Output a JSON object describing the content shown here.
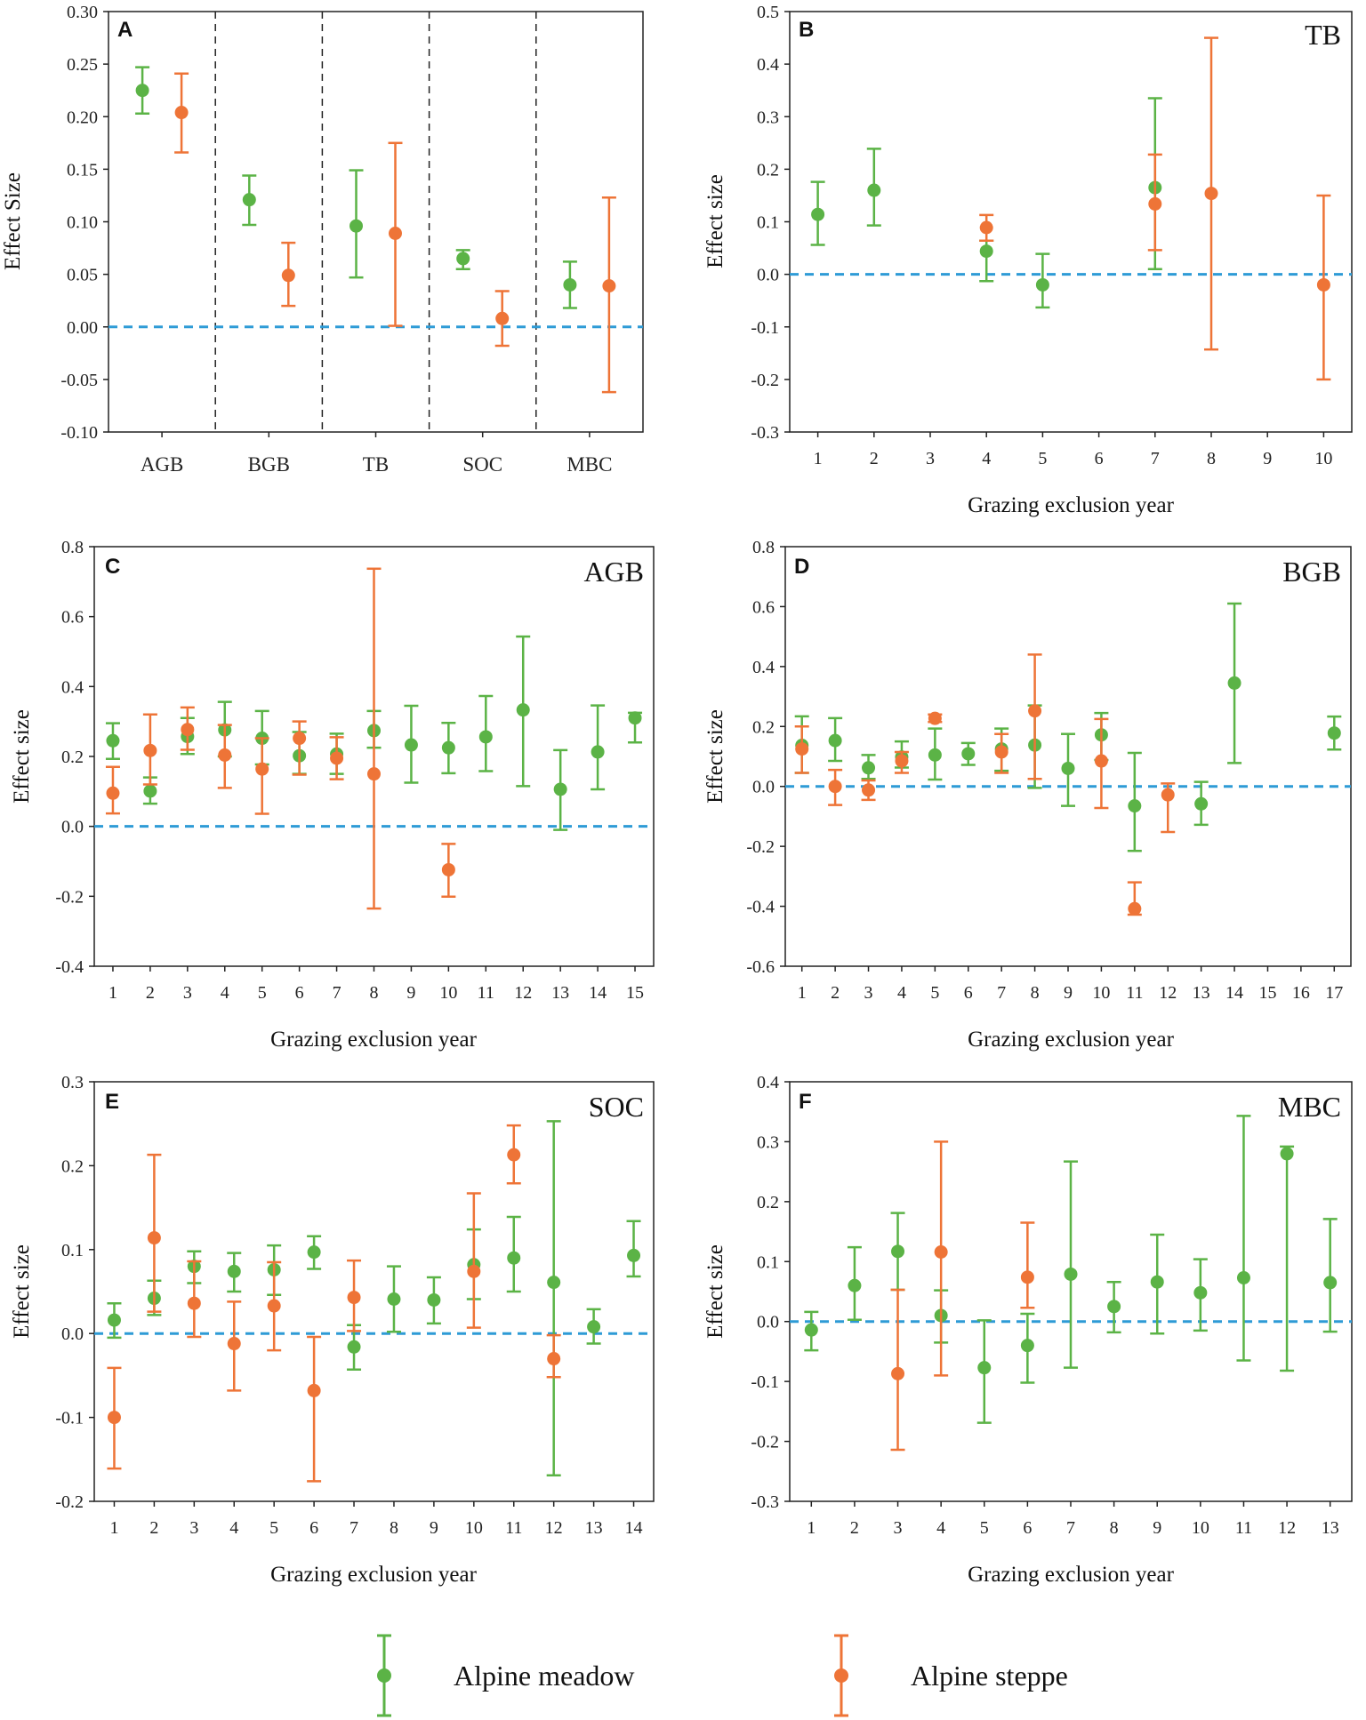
{
  "colors": {
    "meadow": "#5bb346",
    "steppe": "#ee7437",
    "zero_line": "#2e9bd6"
  },
  "legend": [
    {
      "name": "Alpine meadow",
      "color": "#5bb346"
    },
    {
      "name": "Alpine steppe",
      "color": "#ee7437"
    }
  ],
  "chart_data": [
    {
      "id": "A",
      "letter": "A",
      "title": "",
      "type": "scatter",
      "ylabel": "Effect Size",
      "xlabel": "",
      "ylim": [
        -0.1,
        0.3
      ],
      "yticks": [
        "0.30",
        "0.25",
        "0.20",
        "0.15",
        "0.10",
        "0.05",
        "0.00",
        "-0.05",
        "-0.10"
      ],
      "categories": [
        "AGB",
        "BGB",
        "TB",
        "SOC",
        "MBC"
      ],
      "series": [
        {
          "name": "Alpine meadow",
          "points": [
            {
              "x": "AGB",
              "y": 0.225,
              "low": 0.203,
              "high": 0.247
            },
            {
              "x": "BGB",
              "y": 0.121,
              "low": 0.097,
              "high": 0.144
            },
            {
              "x": "TB",
              "y": 0.096,
              "low": 0.047,
              "high": 0.149
            },
            {
              "x": "SOC",
              "y": 0.065,
              "low": 0.055,
              "high": 0.073
            },
            {
              "x": "MBC",
              "y": 0.04,
              "low": 0.018,
              "high": 0.062
            }
          ]
        },
        {
          "name": "Alpine steppe",
          "points": [
            {
              "x": "AGB",
              "y": 0.204,
              "low": 0.166,
              "high": 0.241
            },
            {
              "x": "BGB",
              "y": 0.049,
              "low": 0.02,
              "high": 0.08
            },
            {
              "x": "TB",
              "y": 0.089,
              "low": 0.001,
              "high": 0.175
            },
            {
              "x": "SOC",
              "y": 0.008,
              "low": -0.018,
              "high": 0.034
            },
            {
              "x": "MBC",
              "y": 0.039,
              "low": -0.062,
              "high": 0.123
            }
          ]
        }
      ]
    },
    {
      "id": "B",
      "letter": "B",
      "title": "TB",
      "type": "scatter",
      "ylabel": "Effect size",
      "xlabel": "Grazing exclusion year",
      "ylim": [
        -0.3,
        0.5
      ],
      "yticks": [
        "0.5",
        "0.4",
        "0.3",
        "0.2",
        "0.1",
        "0.0",
        "-0.1",
        "-0.2",
        "-0.3"
      ],
      "categories": [
        "1",
        "2",
        "3",
        "4",
        "5",
        "6",
        "7",
        "8",
        "9",
        "10"
      ],
      "series": [
        {
          "name": "Alpine meadow",
          "points": [
            {
              "x": "1",
              "y": 0.114,
              "low": 0.056,
              "high": 0.176
            },
            {
              "x": "2",
              "y": 0.16,
              "low": 0.093,
              "high": 0.239
            },
            {
              "x": "4",
              "y": 0.044,
              "low": -0.013,
              "high": 0.064
            },
            {
              "x": "5",
              "y": -0.02,
              "low": -0.063,
              "high": 0.039
            },
            {
              "x": "7",
              "y": 0.165,
              "low": 0.01,
              "high": 0.335
            }
          ]
        },
        {
          "name": "Alpine steppe",
          "points": [
            {
              "x": "4",
              "y": 0.089,
              "low": 0.064,
              "high": 0.113
            },
            {
              "x": "7",
              "y": 0.134,
              "low": 0.046,
              "high": 0.228
            },
            {
              "x": "8",
              "y": 0.154,
              "low": -0.143,
              "high": 0.45
            },
            {
              "x": "10",
              "y": -0.02,
              "low": -0.2,
              "high": 0.15
            }
          ]
        }
      ]
    },
    {
      "id": "C",
      "letter": "C",
      "title": "AGB",
      "type": "scatter",
      "ylabel": "Effect size",
      "xlabel": "Grazing exclusion year",
      "ylim": [
        -0.4,
        0.8
      ],
      "yticks": [
        "0.8",
        "0.6",
        "0.4",
        "0.2",
        "0.0",
        "-0.2",
        "-0.4"
      ],
      "categories": [
        "1",
        "2",
        "3",
        "4",
        "5",
        "6",
        "7",
        "8",
        "9",
        "10",
        "11",
        "12",
        "13",
        "14",
        "15"
      ],
      "series": [
        {
          "name": "Alpine meadow",
          "points": [
            {
              "x": "1",
              "y": 0.245,
              "low": 0.193,
              "high": 0.295
            },
            {
              "x": "2",
              "y": 0.101,
              "low": 0.065,
              "high": 0.14
            },
            {
              "x": "3",
              "y": 0.257,
              "low": 0.207,
              "high": 0.31
            },
            {
              "x": "4",
              "y": 0.276,
              "low": 0.2,
              "high": 0.356
            },
            {
              "x": "5",
              "y": 0.252,
              "low": 0.177,
              "high": 0.33
            },
            {
              "x": "6",
              "y": 0.202,
              "low": 0.15,
              "high": 0.27
            },
            {
              "x": "7",
              "y": 0.207,
              "low": 0.15,
              "high": 0.265
            },
            {
              "x": "8",
              "y": 0.274,
              "low": 0.225,
              "high": 0.33
            },
            {
              "x": "9",
              "y": 0.233,
              "low": 0.125,
              "high": 0.345
            },
            {
              "x": "10",
              "y": 0.225,
              "low": 0.152,
              "high": 0.296
            },
            {
              "x": "11",
              "y": 0.256,
              "low": 0.158,
              "high": 0.373
            },
            {
              "x": "12",
              "y": 0.333,
              "low": 0.115,
              "high": 0.543
            },
            {
              "x": "13",
              "y": 0.106,
              "low": -0.01,
              "high": 0.218
            },
            {
              "x": "14",
              "y": 0.213,
              "low": 0.106,
              "high": 0.346
            },
            {
              "x": "15",
              "y": 0.31,
              "low": 0.24,
              "high": 0.325
            }
          ]
        },
        {
          "name": "Alpine steppe",
          "points": [
            {
              "x": "1",
              "y": 0.095,
              "low": 0.037,
              "high": 0.17
            },
            {
              "x": "2",
              "y": 0.217,
              "low": 0.12,
              "high": 0.32
            },
            {
              "x": "3",
              "y": 0.277,
              "low": 0.219,
              "high": 0.34
            },
            {
              "x": "4",
              "y": 0.204,
              "low": 0.11,
              "high": 0.29
            },
            {
              "x": "5",
              "y": 0.164,
              "low": 0.036,
              "high": 0.252
            },
            {
              "x": "6",
              "y": 0.252,
              "low": 0.148,
              "high": 0.3
            },
            {
              "x": "7",
              "y": 0.195,
              "low": 0.135,
              "high": 0.255
            },
            {
              "x": "8",
              "y": 0.15,
              "low": -0.235,
              "high": 0.737
            },
            {
              "x": "10",
              "y": -0.124,
              "low": -0.201,
              "high": -0.05
            }
          ]
        }
      ]
    },
    {
      "id": "D",
      "letter": "D",
      "title": "BGB",
      "type": "scatter",
      "ylabel": "Effect size",
      "xlabel": "Grazing exclusion year",
      "ylim": [
        -0.6,
        0.8
      ],
      "yticks": [
        "0.8",
        "0.6",
        "0.4",
        "0.2",
        "0.0",
        "-0.2",
        "-0.4",
        "-0.6"
      ],
      "categories": [
        "1",
        "2",
        "3",
        "4",
        "5",
        "6",
        "7",
        "8",
        "9",
        "10",
        "11",
        "12",
        "13",
        "14",
        "15",
        "16",
        "17"
      ],
      "series": [
        {
          "name": "Alpine meadow",
          "points": [
            {
              "x": "1",
              "y": 0.137,
              "low": 0.045,
              "high": 0.234
            },
            {
              "x": "2",
              "y": 0.153,
              "low": 0.085,
              "high": 0.228
            },
            {
              "x": "3",
              "y": 0.062,
              "low": 0.025,
              "high": 0.105
            },
            {
              "x": "4",
              "y": 0.098,
              "low": 0.063,
              "high": 0.15
            },
            {
              "x": "5",
              "y": 0.105,
              "low": 0.023,
              "high": 0.193
            },
            {
              "x": "6",
              "y": 0.109,
              "low": 0.072,
              "high": 0.145
            },
            {
              "x": "7",
              "y": 0.125,
              "low": 0.052,
              "high": 0.193
            },
            {
              "x": "8",
              "y": 0.138,
              "low": -0.005,
              "high": 0.27
            },
            {
              "x": "9",
              "y": 0.06,
              "low": -0.065,
              "high": 0.175
            },
            {
              "x": "10",
              "y": 0.172,
              "low": 0.088,
              "high": 0.245
            },
            {
              "x": "11",
              "y": -0.065,
              "low": -0.215,
              "high": 0.112
            },
            {
              "x": "13",
              "y": -0.058,
              "low": -0.128,
              "high": 0.015
            },
            {
              "x": "14",
              "y": 0.345,
              "low": 0.078,
              "high": 0.61
            },
            {
              "x": "17",
              "y": 0.178,
              "low": 0.123,
              "high": 0.233
            }
          ]
        },
        {
          "name": "Alpine steppe",
          "points": [
            {
              "x": "1",
              "y": 0.125,
              "low": 0.045,
              "high": 0.2
            },
            {
              "x": "2",
              "y": 0.0,
              "low": -0.062,
              "high": 0.055
            },
            {
              "x": "3",
              "y": -0.012,
              "low": -0.045,
              "high": 0.02
            },
            {
              "x": "4",
              "y": 0.085,
              "low": 0.045,
              "high": 0.115
            },
            {
              "x": "5",
              "y": 0.227,
              "low": 0.215,
              "high": 0.24
            },
            {
              "x": "7",
              "y": 0.115,
              "low": 0.045,
              "high": 0.175
            },
            {
              "x": "8",
              "y": 0.252,
              "low": 0.025,
              "high": 0.44
            },
            {
              "x": "10",
              "y": 0.085,
              "low": -0.072,
              "high": 0.225
            },
            {
              "x": "11",
              "y": -0.408,
              "low": -0.428,
              "high": -0.32
            },
            {
              "x": "12",
              "y": -0.028,
              "low": -0.152,
              "high": 0.01
            }
          ]
        }
      ]
    },
    {
      "id": "E",
      "letter": "E",
      "title": "SOC",
      "type": "scatter",
      "ylabel": "Effect size",
      "xlabel": "Grazing exclusion year",
      "ylim": [
        -0.2,
        0.3
      ],
      "yticks": [
        "0.3",
        "0.2",
        "0.1",
        "0.0",
        "-0.1",
        "-0.2"
      ],
      "categories": [
        "1",
        "2",
        "3",
        "4",
        "5",
        "6",
        "7",
        "8",
        "9",
        "10",
        "11",
        "12",
        "13",
        "14"
      ],
      "series": [
        {
          "name": "Alpine meadow",
          "points": [
            {
              "x": "1",
              "y": 0.016,
              "low": -0.005,
              "high": 0.036
            },
            {
              "x": "2",
              "y": 0.042,
              "low": 0.022,
              "high": 0.063
            },
            {
              "x": "3",
              "y": 0.08,
              "low": 0.06,
              "high": 0.098
            },
            {
              "x": "4",
              "y": 0.074,
              "low": 0.05,
              "high": 0.096
            },
            {
              "x": "5",
              "y": 0.076,
              "low": 0.046,
              "high": 0.105
            },
            {
              "x": "6",
              "y": 0.097,
              "low": 0.077,
              "high": 0.116
            },
            {
              "x": "7",
              "y": -0.016,
              "low": -0.043,
              "high": 0.01
            },
            {
              "x": "8",
              "y": 0.041,
              "low": 0.002,
              "high": 0.08
            },
            {
              "x": "9",
              "y": 0.04,
              "low": 0.012,
              "high": 0.067
            },
            {
              "x": "10",
              "y": 0.082,
              "low": 0.041,
              "high": 0.124
            },
            {
              "x": "11",
              "y": 0.09,
              "low": 0.05,
              "high": 0.139
            },
            {
              "x": "12",
              "y": 0.061,
              "low": -0.169,
              "high": 0.253
            },
            {
              "x": "13",
              "y": 0.008,
              "low": -0.012,
              "high": 0.029
            },
            {
              "x": "14",
              "y": 0.093,
              "low": 0.068,
              "high": 0.134
            }
          ]
        },
        {
          "name": "Alpine steppe",
          "points": [
            {
              "x": "1",
              "y": -0.1,
              "low": -0.161,
              "high": -0.041
            },
            {
              "x": "2",
              "y": 0.114,
              "low": 0.026,
              "high": 0.213
            },
            {
              "x": "3",
              "y": 0.036,
              "low": -0.004,
              "high": 0.086
            },
            {
              "x": "4",
              "y": -0.012,
              "low": -0.068,
              "high": 0.038
            },
            {
              "x": "5",
              "y": 0.033,
              "low": -0.02,
              "high": 0.085
            },
            {
              "x": "6",
              "y": -0.068,
              "low": -0.176,
              "high": -0.004
            },
            {
              "x": "7",
              "y": 0.043,
              "low": 0.003,
              "high": 0.087
            },
            {
              "x": "10",
              "y": 0.074,
              "low": 0.007,
              "high": 0.167
            },
            {
              "x": "11",
              "y": 0.213,
              "low": 0.179,
              "high": 0.248
            },
            {
              "x": "12",
              "y": -0.03,
              "low": -0.052,
              "high": -0.002
            }
          ]
        }
      ]
    },
    {
      "id": "F",
      "letter": "F",
      "title": "MBC",
      "type": "scatter",
      "ylabel": "Effect size",
      "xlabel": "Grazing exclusion year",
      "ylim": [
        -0.3,
        0.4
      ],
      "yticks": [
        "0.4",
        "0.3",
        "0.2",
        "0.1",
        "0.0",
        "-0.1",
        "-0.2",
        "-0.3"
      ],
      "categories": [
        "1",
        "2",
        "3",
        "4",
        "5",
        "6",
        "7",
        "8",
        "9",
        "10",
        "11",
        "12",
        "13"
      ],
      "series": [
        {
          "name": "Alpine meadow",
          "points": [
            {
              "x": "1",
              "y": -0.014,
              "low": -0.048,
              "high": 0.016
            },
            {
              "x": "2",
              "y": 0.06,
              "low": 0.003,
              "high": 0.124
            },
            {
              "x": "3",
              "y": 0.117,
              "low": 0.053,
              "high": 0.181
            },
            {
              "x": "4",
              "y": 0.01,
              "low": -0.035,
              "high": 0.052
            },
            {
              "x": "5",
              "y": -0.077,
              "low": -0.169,
              "high": 0.002
            },
            {
              "x": "6",
              "y": -0.04,
              "low": -0.102,
              "high": 0.013
            },
            {
              "x": "7",
              "y": 0.079,
              "low": -0.077,
              "high": 0.267
            },
            {
              "x": "8",
              "y": 0.025,
              "low": -0.018,
              "high": 0.066
            },
            {
              "x": "9",
              "y": 0.066,
              "low": -0.02,
              "high": 0.145
            },
            {
              "x": "10",
              "y": 0.048,
              "low": -0.015,
              "high": 0.104
            },
            {
              "x": "11",
              "y": 0.073,
              "low": -0.065,
              "high": 0.343
            },
            {
              "x": "12",
              "y": 0.28,
              "low": -0.082,
              "high": 0.292
            },
            {
              "x": "13",
              "y": 0.065,
              "low": -0.017,
              "high": 0.171
            }
          ]
        },
        {
          "name": "Alpine steppe",
          "points": [
            {
              "x": "3",
              "y": -0.087,
              "low": -0.214,
              "high": 0.053
            },
            {
              "x": "4",
              "y": 0.116,
              "low": -0.09,
              "high": 0.3
            },
            {
              "x": "6",
              "y": 0.074,
              "low": 0.023,
              "high": 0.165
            }
          ]
        }
      ]
    }
  ]
}
